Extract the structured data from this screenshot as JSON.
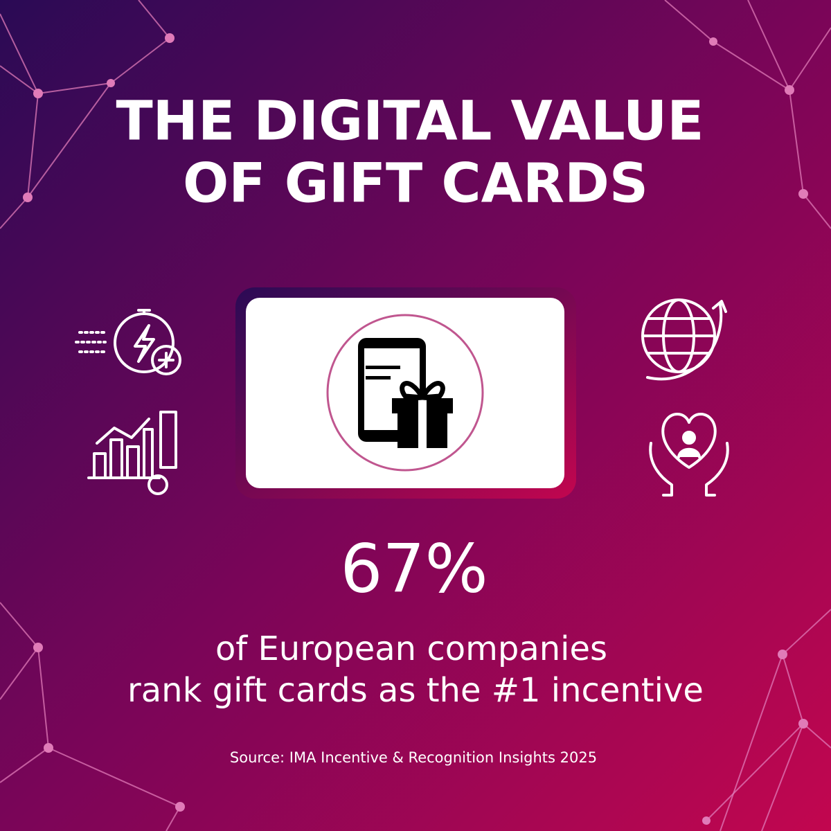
{
  "title": [
    "THE DIGITAL VALUE",
    "OF GIFT CARDS"
  ],
  "stat": "67%",
  "description": [
    "of European companies",
    "rank gift cards as the #1 incentive"
  ],
  "source": "Source: IMA Incentive & Recognition Insights 2025"
}
